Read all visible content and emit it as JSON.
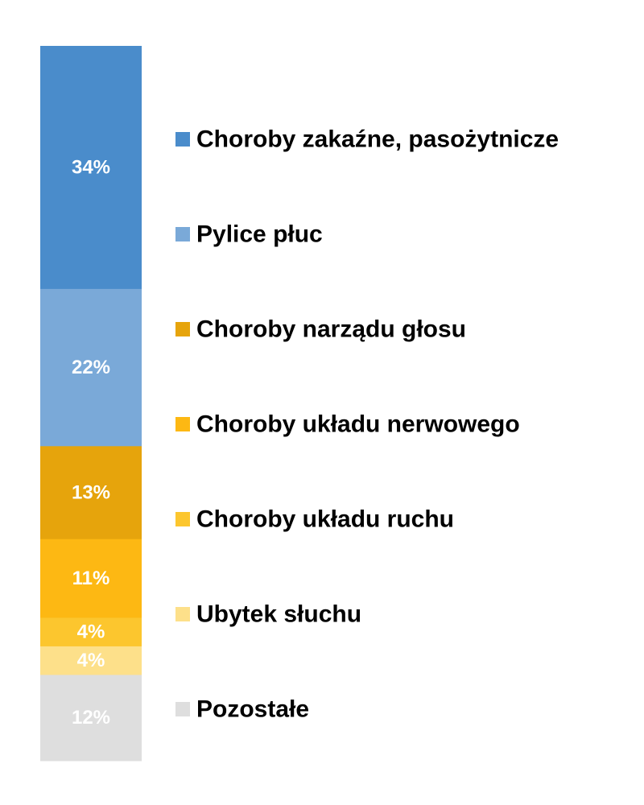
{
  "chart_data": {
    "type": "bar",
    "stacked": true,
    "orientation": "vertical",
    "categories": [
      ""
    ],
    "series": [
      {
        "name": "Choroby zakaźne, pasożytnicze",
        "values": [
          34
        ],
        "label": "34%",
        "color": "#4a8ccb"
      },
      {
        "name": "Pylice płuc",
        "values": [
          22
        ],
        "label": "22%",
        "color": "#7aa9d8"
      },
      {
        "name": "Choroby narządu głosu",
        "values": [
          13
        ],
        "label": "13%",
        "color": "#e6a40c"
      },
      {
        "name": "Choroby  układu nerwowego",
        "values": [
          11
        ],
        "label": "11%",
        "color": "#fdb813"
      },
      {
        "name": "Choroby układu ruchu",
        "values": [
          4
        ],
        "label": "4%",
        "color": "#fcc62e"
      },
      {
        "name": "Ubytek słuchu",
        "values": [
          4
        ],
        "label": "4%",
        "color": "#fde08a"
      },
      {
        "name": "Pozostałe",
        "values": [
          12
        ],
        "label": "12%",
        "color": "#dedede"
      }
    ],
    "value_unit": "%",
    "legend_position": "right",
    "grid": false,
    "title": "",
    "xlabel": "",
    "ylabel": ""
  }
}
